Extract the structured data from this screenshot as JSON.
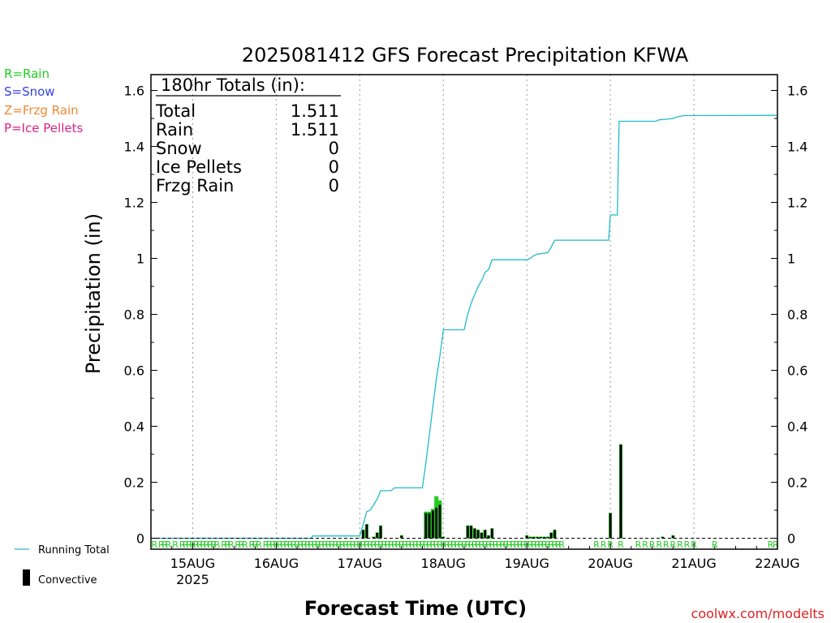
{
  "chart_data": {
    "type": "bar",
    "title": "2025081412 GFS Forecast Precipitation KFWA",
    "xlabel": "Forecast Time (UTC)",
    "ylabel": "Precipitation (in)",
    "ylim": [
      0,
      1.65
    ],
    "y_ticks": [
      0,
      0.2,
      0.4,
      0.6,
      0.8,
      1,
      1.2,
      1.4,
      1.6
    ],
    "y_tick_labels": [
      "0",
      "0.2",
      "0.4",
      "0.6",
      "0.8",
      "1",
      "1.2",
      "1.4",
      "1.6"
    ],
    "xlim_hours": [
      0,
      180
    ],
    "x_ticks": [
      {
        "label": "15AUG",
        "sub": "2025",
        "hour": 12
      },
      {
        "label": "16AUG",
        "sub": "",
        "hour": 36
      },
      {
        "label": "17AUG",
        "sub": "",
        "hour": 60
      },
      {
        "label": "18AUG",
        "sub": "",
        "hour": 84
      },
      {
        "label": "19AUG",
        "sub": "",
        "hour": 108
      },
      {
        "label": "20AUG",
        "sub": "",
        "hour": 132
      },
      {
        "label": "21AUG",
        "sub": "",
        "hour": 156
      },
      {
        "label": "22AUG",
        "sub": "",
        "hour": 180
      }
    ],
    "grid": "vertical dotted at day boundaries",
    "legend_placement": "bottom-left",
    "totals_box": {
      "heading": "180hr Totals (in):",
      "rows": [
        {
          "label": "Total",
          "value": "1.511"
        },
        {
          "label": "Rain",
          "value": "1.511"
        },
        {
          "label": "Snow",
          "value": "0"
        },
        {
          "label": "Ice Pellets",
          "value": "0"
        },
        {
          "label": "Frzg Rain",
          "value": "0"
        }
      ]
    },
    "ptype_legend": [
      {
        "text": "R=Rain",
        "color": "#22cc22"
      },
      {
        "text": "S=Snow",
        "color": "#3344dd"
      },
      {
        "text": "Z=Frzg Rain",
        "color": "#ee8833"
      },
      {
        "text": "P=Ice Pellets",
        "color": "#dd2288"
      }
    ],
    "series_legend": [
      {
        "name": "Running Total",
        "color": "#22bbcc",
        "style": "line"
      },
      {
        "name": "Convective",
        "color": "#000000",
        "style": "bar"
      }
    ],
    "running_total": {
      "color": "#22bbcc",
      "points": [
        [
          0,
          0
        ],
        [
          46,
          0
        ],
        [
          46.5,
          0.008
        ],
        [
          60,
          0.008
        ],
        [
          61,
          0.05
        ],
        [
          62,
          0.095
        ],
        [
          63,
          0.1
        ],
        [
          64,
          0.12
        ],
        [
          65,
          0.14
        ],
        [
          66,
          0.17
        ],
        [
          69,
          0.17
        ],
        [
          70,
          0.18
        ],
        [
          78,
          0.18
        ],
        [
          79,
          0.27
        ],
        [
          80,
          0.37
        ],
        [
          81,
          0.47
        ],
        [
          82,
          0.57
        ],
        [
          83,
          0.65
        ],
        [
          84,
          0.745
        ],
        [
          90,
          0.745
        ],
        [
          91,
          0.8
        ],
        [
          92,
          0.84
        ],
        [
          93,
          0.87
        ],
        [
          94,
          0.9
        ],
        [
          95,
          0.92
        ],
        [
          96,
          0.95
        ],
        [
          97,
          0.96
        ],
        [
          98,
          0.995
        ],
        [
          108,
          0.995
        ],
        [
          109,
          1.0
        ],
        [
          110,
          1.01
        ],
        [
          111,
          1.015
        ],
        [
          114,
          1.02
        ],
        [
          115,
          1.04
        ],
        [
          116,
          1.065
        ],
        [
          131.5,
          1.065
        ],
        [
          132,
          1.155
        ],
        [
          134,
          1.155
        ],
        [
          134.5,
          1.49
        ],
        [
          145,
          1.49
        ],
        [
          146,
          1.495
        ],
        [
          148,
          1.497
        ],
        [
          150,
          1.5
        ],
        [
          151,
          1.505
        ],
        [
          153,
          1.51
        ],
        [
          180,
          1.511
        ]
      ]
    },
    "precip_bars": {
      "width_hours": 0.8,
      "rain_color": "#22cc22",
      "convective_color": "#000000",
      "hours": [
        61,
        62,
        64,
        65,
        66,
        72,
        79,
        80,
        81,
        82,
        83,
        84,
        91,
        92,
        93,
        94,
        95,
        96,
        97,
        98,
        108,
        109,
        110,
        111,
        112,
        113,
        114,
        115,
        116,
        132,
        135,
        147,
        150
      ],
      "total": [
        0.03,
        0.05,
        0.005,
        0.02,
        0.045,
        0.01,
        0.095,
        0.095,
        0.105,
        0.15,
        0.135,
        0.005,
        0.045,
        0.045,
        0.035,
        0.03,
        0.02,
        0.03,
        0.01,
        0.035,
        0.01,
        0.005,
        0.005,
        0.005,
        0.005,
        0.005,
        0.005,
        0.02,
        0.03,
        0.09,
        0.335,
        0.005,
        0.01
      ],
      "convective": [
        0.03,
        0.05,
        0.005,
        0.02,
        0.045,
        0.01,
        0.09,
        0.09,
        0.1,
        0.11,
        0.12,
        0.005,
        0.045,
        0.045,
        0.035,
        0.03,
        0.02,
        0.03,
        0.01,
        0.035,
        0.01,
        0.005,
        0.005,
        0.005,
        0.005,
        0.005,
        0.005,
        0.02,
        0.03,
        0.09,
        0.335,
        0.005,
        0.01
      ]
    },
    "ptype_markers": {
      "text": "R",
      "color": "#22cc22",
      "hours": [
        1,
        3,
        4,
        5,
        7,
        9,
        10,
        11,
        12,
        13,
        14,
        15,
        16,
        17,
        18,
        19,
        21,
        22,
        23,
        25,
        26,
        27,
        29,
        30,
        31,
        33,
        34,
        35,
        36,
        37,
        38,
        39,
        40,
        41,
        42,
        43,
        44,
        45,
        46,
        47,
        48,
        49,
        50,
        51,
        52,
        53,
        54,
        55,
        56,
        57,
        58,
        59,
        60,
        61,
        62,
        63,
        64,
        65,
        66,
        67,
        68,
        69,
        70,
        71,
        72,
        73,
        74,
        75,
        76,
        77,
        78,
        79,
        80,
        81,
        82,
        83,
        84,
        85,
        86,
        87,
        88,
        89,
        90,
        91,
        92,
        93,
        94,
        95,
        96,
        97,
        98,
        99,
        100,
        101,
        102,
        103,
        104,
        105,
        106,
        107,
        108,
        109,
        110,
        111,
        112,
        113,
        114,
        115,
        116,
        117,
        118,
        128,
        130,
        132,
        135,
        140,
        142,
        144,
        146,
        148,
        150,
        152,
        154,
        156,
        162,
        178,
        179.5
      ]
    },
    "credit": "coolwx.com/modelts",
    "credit_color": "#dd2222"
  }
}
